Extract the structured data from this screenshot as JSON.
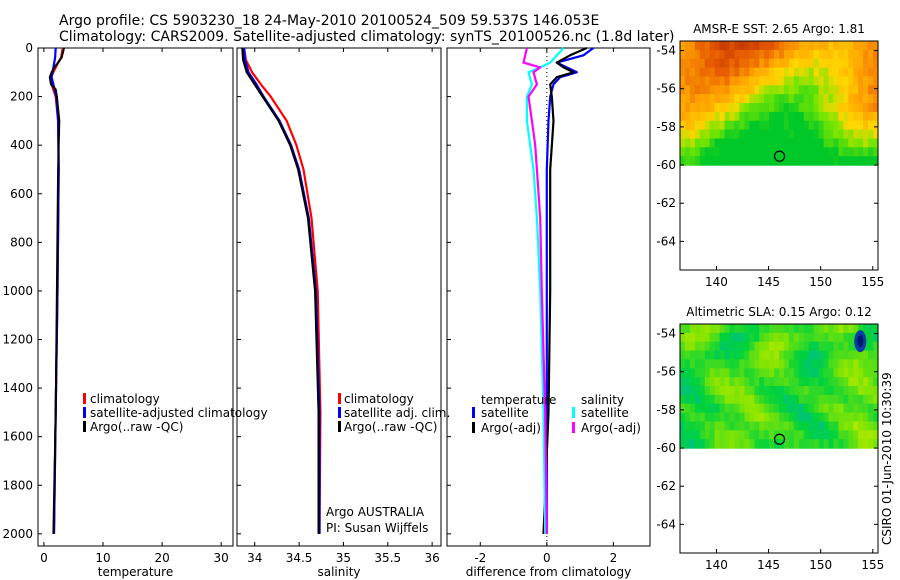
{
  "header": {
    "line1": "Argo profile: CS 5903230_18 24-May-2010 20100524_509 59.537S 146.053E",
    "line2": "Climatology: CARS2009. Satellite-adjusted climatology: synTS_20100526.nc (1.8d later)"
  },
  "side_text": "CSIRO 01-Jun-2010 10:30:39",
  "colors": {
    "climatology": "#ff0000",
    "satellite": "#0000ff",
    "argo": "#000000",
    "satellite_diff_salinity": "#00ffff",
    "argo_diff_salinity": "#ff00ff"
  },
  "chart_data": [
    {
      "type": "line",
      "id": "temperature",
      "xlabel": "temperature",
      "ylabel": "",
      "xlim": [
        -1,
        32
      ],
      "ylim": [
        2050,
        0
      ],
      "xticks": [
        0,
        10,
        20,
        30
      ],
      "yticks": [
        0,
        200,
        400,
        600,
        800,
        1000,
        1200,
        1400,
        1600,
        1800,
        2000
      ],
      "legend": [
        "climatology",
        "satellite-adjusted climatology",
        "Argo(..raw -QC)"
      ],
      "series": [
        {
          "name": "climatology",
          "depth": [
            0,
            40,
            80,
            120,
            150,
            200,
            300,
            500,
            1000,
            1500,
            2000
          ],
          "values": [
            3.2,
            2.9,
            2.0,
            1.2,
            1.3,
            2.0,
            2.4,
            2.5,
            2.3,
            2.0,
            1.7
          ]
        },
        {
          "name": "satellite-adjusted climatology",
          "depth": [
            0,
            40,
            80,
            120,
            150,
            200,
            300,
            500,
            1000,
            1500,
            2000
          ],
          "values": [
            2.0,
            1.9,
            1.6,
            1.3,
            1.6,
            2.1,
            2.4,
            2.5,
            2.3,
            2.0,
            1.7
          ]
        },
        {
          "name": "Argo(..raw -QC)",
          "depth": [
            0,
            40,
            80,
            100,
            120,
            150,
            170,
            200,
            300,
            500,
            1000,
            1500,
            2000
          ],
          "values": [
            3.4,
            3.0,
            1.8,
            1.3,
            1.0,
            1.2,
            2.0,
            2.2,
            2.6,
            2.4,
            2.2,
            2.0,
            1.6
          ]
        }
      ]
    },
    {
      "type": "line",
      "id": "salinity",
      "xlabel": "salinity",
      "ylabel": "",
      "xlim": [
        33.8,
        36.1
      ],
      "ylim": [
        2050,
        0
      ],
      "xticks": [
        34,
        34.5,
        35,
        35.5,
        36
      ],
      "xticklabels": [
        "34",
        "34.5",
        "35",
        "35.5",
        "36"
      ],
      "legend": [
        "climatology",
        "satellite adj. clim.",
        "Argo(..raw -QC)"
      ],
      "annotation": [
        "Argo AUSTRALIA",
        "PI: Susan Wijffels"
      ],
      "series": [
        {
          "name": "climatology",
          "depth": [
            0,
            50,
            100,
            150,
            200,
            300,
            400,
            500,
            700,
            1000,
            1500,
            2000
          ],
          "values": [
            33.88,
            33.9,
            33.97,
            34.07,
            34.18,
            34.36,
            34.47,
            34.55,
            34.64,
            34.71,
            34.74,
            34.73
          ]
        },
        {
          "name": "satellite adj. clim.",
          "depth": [
            0,
            50,
            100,
            150,
            200,
            300,
            400,
            500,
            700,
            1000,
            1500,
            2000
          ],
          "values": [
            33.88,
            33.89,
            33.93,
            34.02,
            34.1,
            34.28,
            34.41,
            34.5,
            34.61,
            34.69,
            34.73,
            34.73
          ]
        },
        {
          "name": "Argo(..raw -QC)",
          "depth": [
            0,
            50,
            100,
            150,
            200,
            300,
            400,
            500,
            700,
            1000,
            1500,
            2000
          ],
          "values": [
            33.86,
            33.87,
            33.91,
            34.0,
            34.09,
            34.27,
            34.4,
            34.49,
            34.6,
            34.68,
            34.72,
            34.72
          ]
        }
      ]
    },
    {
      "type": "line",
      "id": "difference",
      "xlabel": "difference from climatology",
      "ylabel": "",
      "xlim": [
        -3,
        3.1
      ],
      "ylim": [
        2050,
        0
      ],
      "xticks": [
        -2,
        0,
        2
      ],
      "legend_groups": [
        {
          "title": "temperature",
          "items": [
            "satellite",
            "Argo(-adj)"
          ]
        },
        {
          "title": "salinity",
          "items": [
            "satellite",
            "Argo(-adj)"
          ]
        }
      ],
      "series": [
        {
          "name": "temperature satellite",
          "depth": [
            0,
            30,
            60,
            80,
            100,
            120,
            150,
            200,
            300,
            500,
            1000,
            1500,
            2000
          ],
          "values": [
            1.4,
            1.1,
            0.3,
            0.6,
            0.9,
            0.4,
            0.2,
            0.1,
            0.05,
            0.0,
            0.0,
            0.0,
            0.0
          ]
        },
        {
          "name": "temperature Argo(-adj)",
          "depth": [
            0,
            30,
            60,
            80,
            100,
            120,
            150,
            200,
            300,
            500,
            1000,
            1500,
            2000
          ],
          "values": [
            1.2,
            0.7,
            0.3,
            0.5,
            0.8,
            0.3,
            0.1,
            0.15,
            0.2,
            0.1,
            0.1,
            0.05,
            -0.1
          ]
        },
        {
          "name": "salinity satellite",
          "depth": [
            0,
            60,
            80,
            100,
            150,
            200,
            300,
            500,
            700,
            1000,
            1500,
            2000
          ],
          "values": [
            0.5,
            0.1,
            -0.2,
            -0.55,
            -0.45,
            -0.6,
            -0.6,
            -0.4,
            -0.3,
            -0.2,
            -0.1,
            -0.05
          ]
        },
        {
          "name": "salinity Argo(-adj)",
          "depth": [
            0,
            60,
            80,
            100,
            150,
            200,
            250,
            300,
            400,
            500,
            700,
            1000,
            1500,
            2000
          ],
          "values": [
            -0.6,
            -0.7,
            -0.2,
            -0.4,
            -0.3,
            -0.55,
            -0.5,
            -0.45,
            -0.35,
            -0.3,
            -0.2,
            -0.15,
            -0.05,
            0.0
          ]
        }
      ]
    },
    {
      "type": "heatmap",
      "id": "sst_map",
      "title": "AMSR-E SST: 2.65 Argo: 1.81",
      "xlim": [
        136.5,
        155.5
      ],
      "ylim": [
        -65.5,
        -53.5
      ],
      "xticks": [
        140,
        145,
        150,
        155
      ],
      "yticks": [
        -54,
        -56,
        -58,
        -60,
        -62,
        -64
      ],
      "data_extent_lat": [
        -60,
        -53.5
      ],
      "marker": {
        "lon": 146.05,
        "lat": -59.54
      }
    },
    {
      "type": "heatmap",
      "id": "sla_map",
      "title": "Altimetric SLA: 0.15 Argo: 0.12",
      "xlim": [
        136.5,
        155.5
      ],
      "ylim": [
        -65.5,
        -53.5
      ],
      "xticks": [
        140,
        145,
        150,
        155
      ],
      "yticks": [
        -54,
        -56,
        -58,
        -60,
        -62,
        -64
      ],
      "data_extent_lat": [
        -60,
        -53.5
      ],
      "marker": {
        "lon": 146.05,
        "lat": -59.54
      }
    }
  ]
}
